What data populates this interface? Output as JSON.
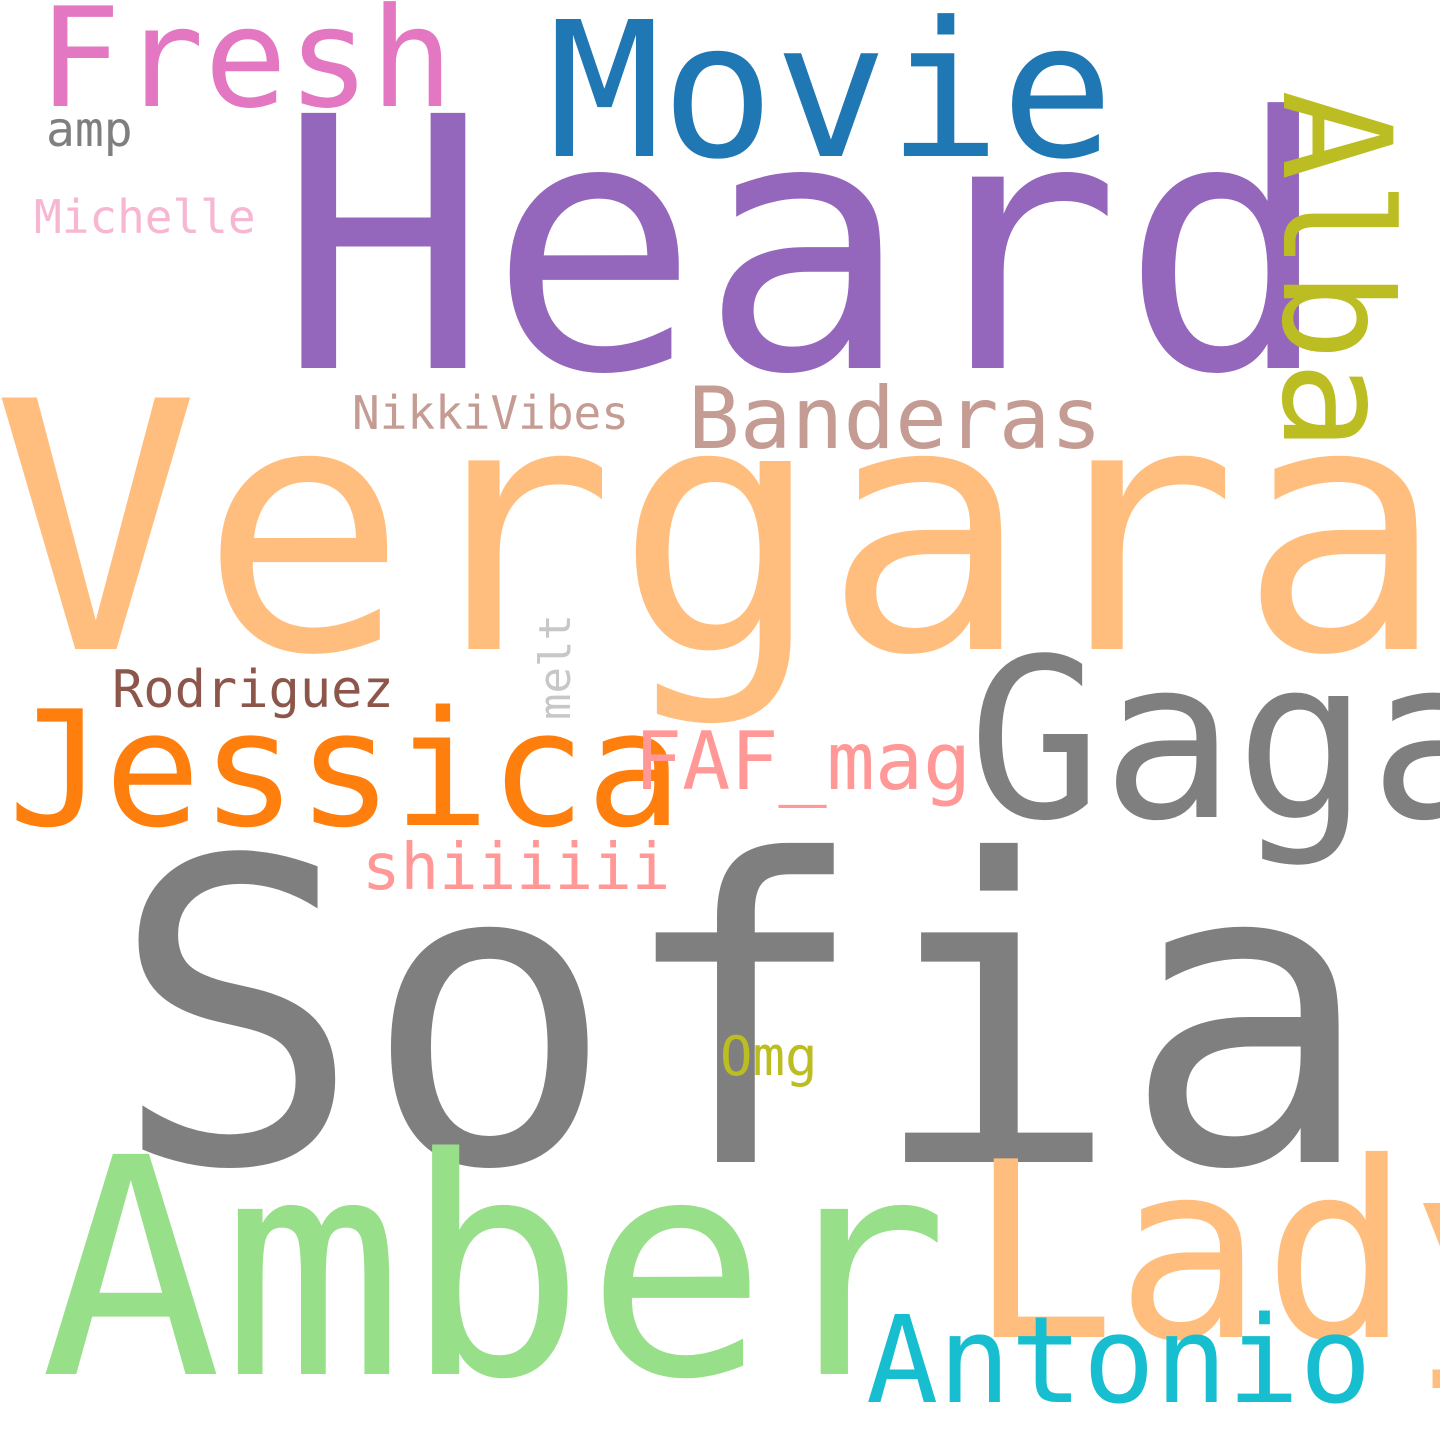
{
  "word_cloud": {
    "words": [
      {
        "text": "Sofia",
        "color": "#7f7f7f",
        "orientation": "horizontal"
      },
      {
        "text": "Vergara",
        "color": "#ffbe7d",
        "orientation": "horizontal"
      },
      {
        "text": "Heard",
        "color": "#9467bd",
        "orientation": "horizontal"
      },
      {
        "text": "Amber",
        "color": "#98df8a",
        "orientation": "horizontal"
      },
      {
        "text": "Lady",
        "color": "#ffbe7d",
        "orientation": "horizontal"
      },
      {
        "text": "Gaga",
        "color": "#7f7f7f",
        "orientation": "horizontal"
      },
      {
        "text": "Movie",
        "color": "#1f77b4",
        "orientation": "horizontal"
      },
      {
        "text": "Jessica",
        "color": "#ff7f0e",
        "orientation": "horizontal"
      },
      {
        "text": "Antonio",
        "color": "#17becf",
        "orientation": "horizontal"
      },
      {
        "text": "Fresh",
        "color": "#e377c2",
        "orientation": "horizontal"
      },
      {
        "text": "Alba",
        "color": "#bcbd22",
        "orientation": "vertical"
      },
      {
        "text": "Banderas",
        "color": "#c49c94",
        "orientation": "horizontal"
      },
      {
        "text": "FAF_mag",
        "color": "#ff9896",
        "orientation": "horizontal"
      },
      {
        "text": "shiiiiii",
        "color": "#ff9896",
        "orientation": "horizontal"
      },
      {
        "text": "Rodriguez",
        "color": "#8c564b",
        "orientation": "horizontal"
      },
      {
        "text": "NikkiVibes",
        "color": "#c49c94",
        "orientation": "horizontal"
      },
      {
        "text": "Michelle",
        "color": "#f7b6d2",
        "orientation": "horizontal"
      },
      {
        "text": "Omg",
        "color": "#bcbd22",
        "orientation": "horizontal"
      },
      {
        "text": "amp",
        "color": "#7f7f7f",
        "orientation": "horizontal"
      },
      {
        "text": "melt",
        "color": "#c7c7c7",
        "orientation": "vertical"
      }
    ]
  }
}
